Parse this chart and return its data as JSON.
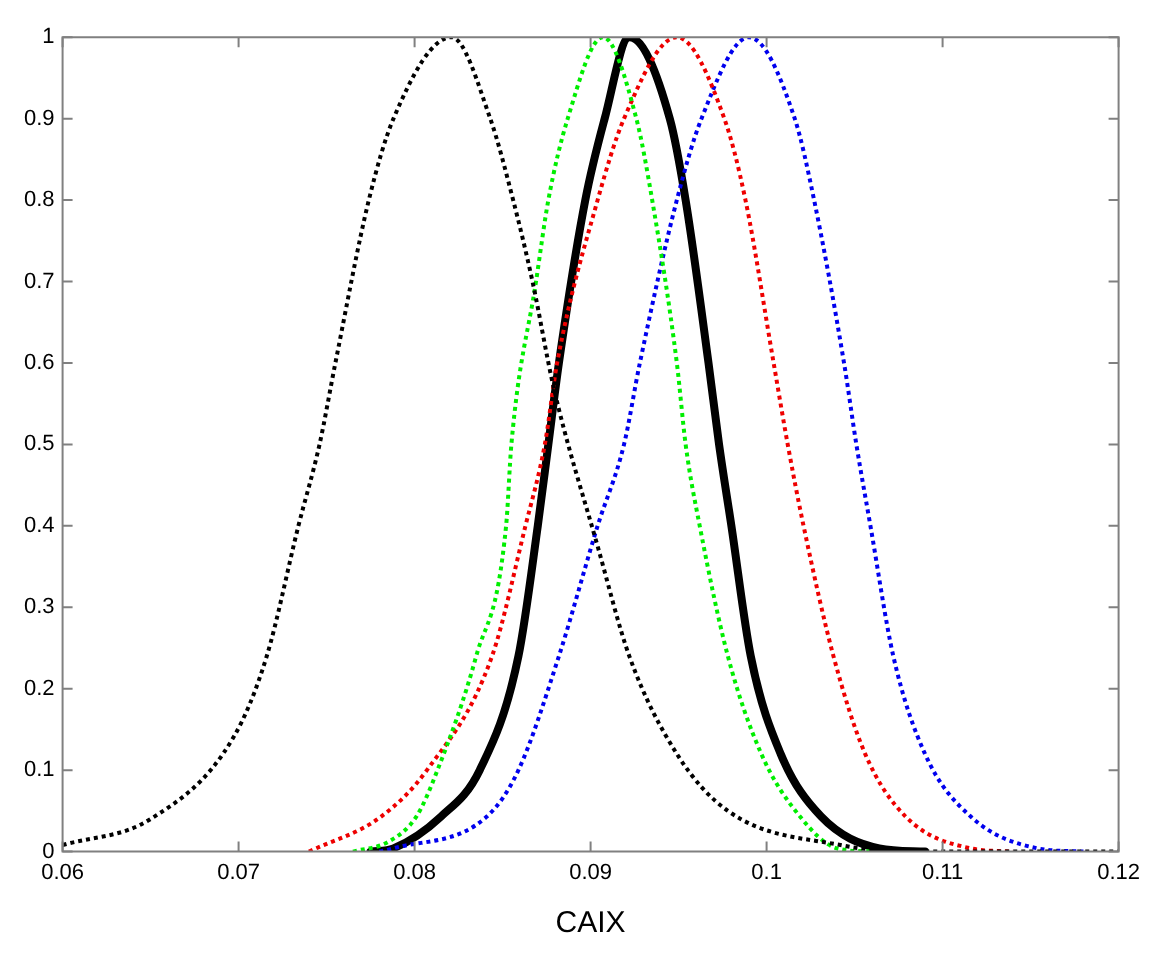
{
  "chart_data": {
    "type": "line",
    "xlabel": "CAIX",
    "xlim": [
      0.06,
      0.12
    ],
    "ylim": [
      0,
      1
    ],
    "xticks": [
      0.06,
      0.07,
      0.08,
      0.09,
      0.1,
      0.11,
      0.12
    ],
    "yticks": [
      0,
      0.1,
      0.2,
      0.3,
      0.4,
      0.5,
      0.6,
      0.7,
      0.8,
      0.9,
      1
    ],
    "grid": false,
    "legend": false,
    "marker": "none",
    "series": [
      {
        "color": "#000000",
        "line_style": "dotted",
        "x": [
          0.06,
          0.065,
          0.0697,
          0.0716,
          0.0734,
          0.0746,
          0.0755,
          0.0774,
          0.0788,
          0.0821,
          0.0843,
          0.0856,
          0.0867,
          0.0879,
          0.0904,
          0.0922,
          0.0949,
          0.0978,
          0.1042,
          0.108,
          0.12
        ],
        "values": [
          0.008,
          0.04,
          0.14,
          0.24,
          0.4,
          0.5,
          0.6,
          0.8,
          0.9,
          1,
          0.9,
          0.8,
          0.7,
          0.57,
          0.375,
          0.24,
          0.12,
          0.05,
          0.008,
          0,
          0
        ]
      },
      {
        "color": "#00ee00",
        "line_style": "dotted",
        "x": [
          0.0765,
          0.0785,
          0.0801,
          0.0813,
          0.0835,
          0.0852,
          0.0855,
          0.0869,
          0.0876,
          0.0887,
          0.0907,
          0.0926,
          0.0935,
          0.0949,
          0.0954,
          0.0962,
          0.0978,
          0.0997,
          0.1019,
          0.104,
          0.106
        ],
        "values": [
          0,
          0.012,
          0.043,
          0.1,
          0.24,
          0.4,
          0.5,
          0.7,
          0.8,
          0.9,
          1,
          0.9,
          0.8,
          0.6,
          0.5,
          0.4,
          0.24,
          0.12,
          0.043,
          0.004,
          0
        ]
      },
      {
        "color": "#ee0000",
        "line_style": "dotted",
        "x": [
          0.074,
          0.0781,
          0.0807,
          0.0844,
          0.0863,
          0.0874,
          0.0881,
          0.0904,
          0.0919,
          0.0949,
          0.0976,
          0.0988,
          0.1004,
          0.1012,
          0.1021,
          0.1038,
          0.1056,
          0.1079,
          0.1116,
          0.114
        ],
        "values": [
          0,
          0.043,
          0.1,
          0.24,
          0.4,
          0.5,
          0.6,
          0.8,
          0.9,
          1,
          0.9,
          0.8,
          0.6,
          0.5,
          0.4,
          0.24,
          0.12,
          0.043,
          0.004,
          0
        ]
      },
      {
        "color": "#0000ee",
        "line_style": "dotted",
        "x": [
          0.078,
          0.0788,
          0.0841,
          0.0859,
          0.0882,
          0.0904,
          0.0919,
          0.0928,
          0.0949,
          0.0963,
          0.099,
          0.1016,
          0.1027,
          0.1044,
          0.1051,
          0.1059,
          0.1072,
          0.109,
          0.1116,
          0.1154,
          0.118
        ],
        "values": [
          0,
          0.004,
          0.043,
          0.1,
          0.24,
          0.4,
          0.5,
          0.6,
          0.8,
          0.9,
          1,
          0.9,
          0.8,
          0.6,
          0.5,
          0.4,
          0.24,
          0.12,
          0.043,
          0.004,
          0
        ]
      },
      {
        "color": "#000000",
        "line_style": "solid",
        "x": [
          0.0775,
          0.0788,
          0.0815,
          0.0837,
          0.0859,
          0.087,
          0.0876,
          0.0882,
          0.0897,
          0.0908,
          0.0922,
          0.0945,
          0.0954,
          0.0967,
          0.0973,
          0.098,
          0.0991,
          0.1008,
          0.1031,
          0.1064,
          0.109
        ],
        "values": [
          0,
          0.004,
          0.043,
          0.1,
          0.24,
          0.4,
          0.5,
          0.6,
          0.8,
          0.9,
          1,
          0.9,
          0.8,
          0.6,
          0.5,
          0.4,
          0.24,
          0.12,
          0.043,
          0.004,
          0
        ]
      }
    ]
  }
}
